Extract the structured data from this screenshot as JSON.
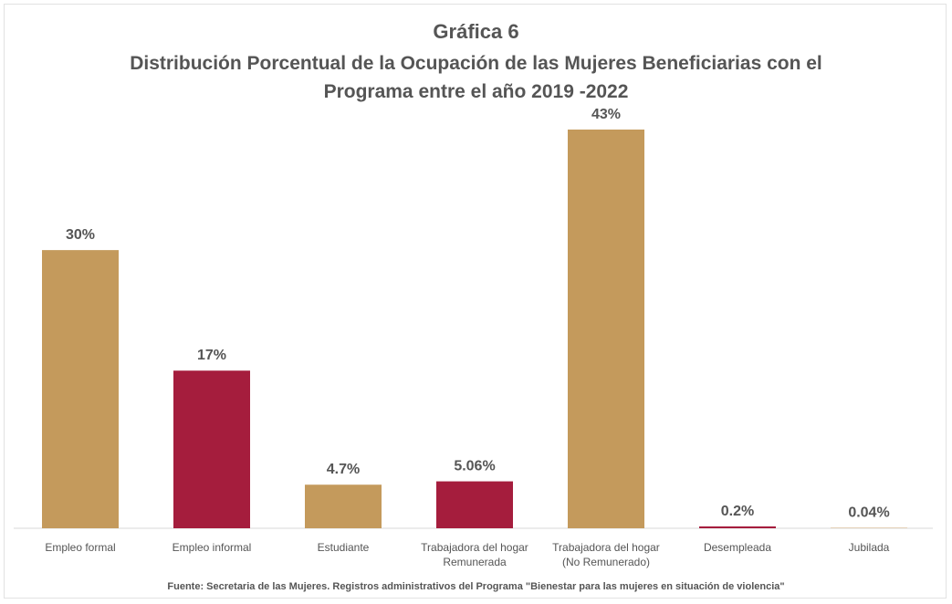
{
  "chart_data": {
    "type": "bar",
    "title": "Gráfica 6",
    "subtitle": "Distribución Porcentual de la Ocupación de las Mujeres Beneficiarias con el\nPrograma entre el año 2019 -2022",
    "categories": [
      "Empleo formal",
      "Empleo informal",
      "Estudiante",
      "Trabajadora del hogar\nRemunerada",
      "Trabajadora del hogar\n(No Remunerado)",
      "Desempleada",
      "Jubilada"
    ],
    "values": [
      30,
      17,
      4.7,
      5.06,
      43,
      0.2,
      0.04
    ],
    "value_labels": [
      "30%",
      "17%",
      "4.7%",
      "5.06%",
      "43%",
      "0.2%",
      "0.04%"
    ],
    "colors": [
      "#c49a5c",
      "#a51d3d",
      "#c49a5c",
      "#a51d3d",
      "#c49a5c",
      "#a51d3d",
      "#c49a5c"
    ],
    "source": "Fuente: Secretaria de las Mujeres. Registros administrativos del Programa \"Bienestar para las mujeres en situación de violencia\""
  }
}
